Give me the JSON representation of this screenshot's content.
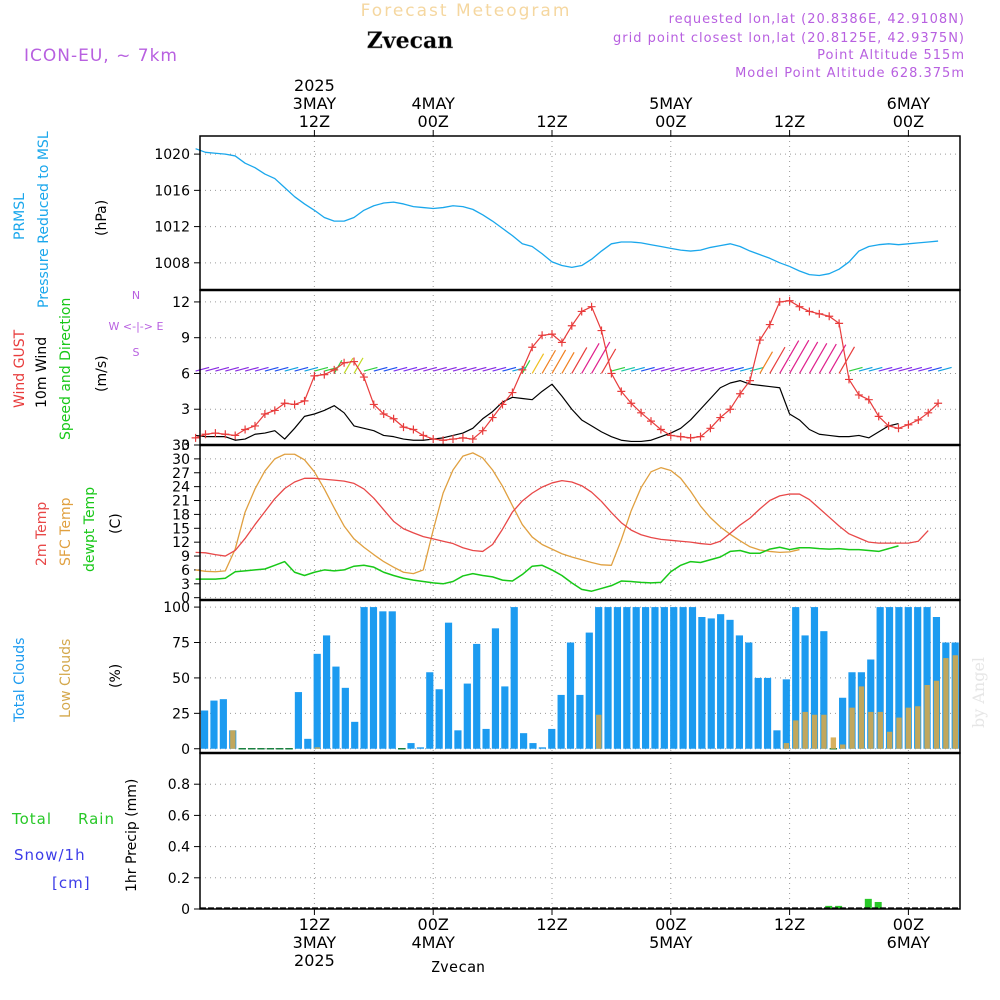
{
  "header": {
    "product": "Forecast Meteogram",
    "location": "Zvecan",
    "model": "ICON-EU, ~ 7km",
    "requested": "requested lon,lat (20.8386E, 42.9108N)",
    "grid": "grid point closest lon,lat (20.8125E, 42.9375N)",
    "point_alt": "Point Altitude 515m",
    "model_alt": "Model Point Altitude 628.375m",
    "footer_location": "Zvecan",
    "watermark": "by Angel"
  },
  "colors": {
    "pressure": "#1aa7ec",
    "gust": "#e83c3c",
    "wind": "#000000",
    "t2m": "#e84848",
    "sfc": "#e0a040",
    "dewpt": "#18c818",
    "total_clouds": "#1c9bf0",
    "low_clouds": "#d4a84c",
    "rain": "#28c828",
    "snow": "#3c3ce8",
    "purple": "#b860e0"
  },
  "time_axis": {
    "top": [
      {
        "h": 12,
        "lines": [
          "2025",
          "3MAY",
          "12Z"
        ]
      },
      {
        "h": 24,
        "lines": [
          "4MAY",
          "00Z"
        ]
      },
      {
        "h": 36,
        "lines": [
          "12Z"
        ]
      },
      {
        "h": 48,
        "lines": [
          "5MAY",
          "00Z"
        ]
      },
      {
        "h": 60,
        "lines": [
          "12Z"
        ]
      },
      {
        "h": 72,
        "lines": [
          "6MAY",
          "00Z"
        ]
      }
    ],
    "bottom": [
      {
        "h": 12,
        "lines": [
          "12Z",
          "3MAY",
          "2025"
        ]
      },
      {
        "h": 24,
        "lines": [
          "00Z",
          "4MAY"
        ]
      },
      {
        "h": 36,
        "lines": [
          "12Z"
        ]
      },
      {
        "h": 48,
        "lines": [
          "00Z",
          "5MAY"
        ]
      },
      {
        "h": 60,
        "lines": [
          "12Z"
        ]
      },
      {
        "h": 72,
        "lines": [
          "00Z",
          "6MAY"
        ]
      }
    ]
  },
  "panels": {
    "pressure": {
      "labels": [
        "PRMSL",
        "Pressure Reduced to MSL"
      ],
      "unit": "(hPa)"
    },
    "wind": {
      "labels": [
        "Wind GUST",
        "10m Wind",
        "Speed and Direction"
      ],
      "unit": "(m/s)",
      "compass": [
        "N",
        "W <-|-> E",
        "S"
      ]
    },
    "temp": {
      "labels": [
        "2m Temp",
        "SFC Temp",
        "dewpt Temp"
      ],
      "unit": "(C)"
    },
    "clouds": {
      "labels": [
        "Total Clouds",
        "Low Clouds"
      ],
      "unit": "(%)"
    },
    "precip": {
      "labels": [
        "Total",
        "Rain",
        "Snow/1h",
        "[cm]"
      ],
      "unit": "1hr Precip (mm)"
    }
  },
  "chart_data": [
    {
      "type": "line",
      "title": "PRMSL Pressure Reduced to MSL",
      "ylabel": "(hPa)",
      "x_hours": [
        0,
        1,
        2,
        3,
        4,
        5,
        6,
        7,
        8,
        9,
        10,
        11,
        12,
        13,
        14,
        15,
        16,
        17,
        18,
        19,
        20,
        21,
        22,
        23,
        24,
        25,
        26,
        27,
        28,
        29,
        30,
        31,
        32,
        33,
        34,
        35,
        36,
        37,
        38,
        39,
        40,
        41,
        42,
        43,
        44,
        45,
        46,
        47,
        48,
        49,
        50,
        51,
        52,
        53,
        54,
        55,
        56,
        57,
        58,
        59,
        60,
        61,
        62,
        63,
        64,
        65,
        66,
        67,
        68,
        69,
        70,
        71,
        72,
        73,
        74,
        75
      ],
      "series": [
        {
          "name": "PRMSL",
          "values": [
            1020.6,
            1020.2,
            1020.1,
            1020.0,
            1019.8,
            1019.0,
            1018.5,
            1017.8,
            1017.3,
            1016.3,
            1015.3,
            1014.5,
            1013.8,
            1013.0,
            1012.6,
            1012.6,
            1013.0,
            1013.8,
            1014.3,
            1014.6,
            1014.7,
            1014.5,
            1014.2,
            1014.1,
            1014.0,
            1014.1,
            1014.3,
            1014.2,
            1013.9,
            1013.3,
            1012.6,
            1011.8,
            1011.0,
            1010.1,
            1009.8,
            1009.0,
            1008.1,
            1007.7,
            1007.5,
            1007.7,
            1008.4,
            1009.3,
            1010.1,
            1010.3,
            1010.3,
            1010.2,
            1010.0,
            1009.8,
            1009.6,
            1009.4,
            1009.3,
            1009.4,
            1009.7,
            1009.9,
            1010.1,
            1009.8,
            1009.3,
            1008.9,
            1008.5,
            1008.0,
            1007.6,
            1007.1,
            1006.7,
            1006.6,
            1006.8,
            1007.3,
            1008.1,
            1009.3,
            1009.8,
            1010.0,
            1010.1,
            1010.0,
            1010.1,
            1010.2,
            1010.3,
            1010.4
          ]
        }
      ],
      "ylim": [
        1005,
        1022
      ],
      "yticks": [
        1008,
        1012,
        1016,
        1020
      ]
    },
    {
      "type": "line",
      "title": "Wind GUST / 10m Wind Speed and Direction",
      "ylabel": "(m/s)",
      "series": [
        {
          "name": "Wind GUST",
          "values": [
            0.6,
            0.9,
            1.0,
            0.9,
            0.8,
            1.3,
            1.6,
            2.6,
            2.9,
            3.5,
            3.4,
            3.7,
            5.8,
            5.9,
            6.3,
            6.9,
            7.0,
            5.7,
            3.4,
            2.6,
            2.2,
            1.5,
            1.3,
            0.8,
            0.5,
            0.4,
            0.5,
            0.6,
            0.5,
            1.2,
            2.3,
            3.4,
            4.4,
            6.3,
            8.2,
            9.2,
            9.3,
            8.6,
            10.0,
            11.2,
            11.6,
            9.6,
            6.0,
            4.5,
            3.5,
            2.7,
            2.0,
            1.3,
            0.8,
            0.7,
            0.6,
            0.7,
            1.4,
            2.3,
            3.0,
            4.3,
            5.4,
            8.8,
            10.1,
            12.0,
            12.1,
            11.6,
            11.2,
            11.0,
            10.8,
            10.2,
            5.5,
            4.2,
            3.8,
            2.4,
            1.6,
            1.4,
            1.7,
            2.1,
            2.7,
            3.5
          ]
        },
        {
          "name": "10m Wind",
          "values": [
            0.8,
            0.7,
            0.7,
            0.7,
            0.4,
            0.5,
            0.9,
            1.0,
            1.2,
            0.5,
            1.4,
            2.4,
            2.6,
            2.9,
            3.3,
            2.7,
            1.6,
            1.4,
            1.2,
            0.8,
            0.7,
            0.5,
            0.4,
            0.4,
            0.5,
            0.6,
            0.8,
            1.0,
            1.4,
            2.2,
            2.8,
            3.6,
            4.0,
            3.9,
            3.8,
            4.5,
            5.1,
            4.1,
            3.0,
            2.1,
            1.6,
            1.1,
            0.7,
            0.4,
            0.3,
            0.3,
            0.4,
            0.7,
            1.0,
            1.4,
            2.1,
            3.0,
            3.9,
            4.8,
            5.2,
            5.4,
            5.1,
            5.0,
            4.9,
            4.8,
            2.6,
            2.1,
            1.3,
            0.9,
            0.8,
            0.7,
            0.7,
            0.8,
            0.6,
            1.1,
            1.6,
            1.8
          ]
        }
      ],
      "ylim": [
        0,
        13
      ],
      "yticks": [
        0,
        3,
        6,
        9,
        12
      ]
    },
    {
      "type": "line",
      "title": "2m Temp / SFC Temp / dewpt Temp",
      "ylabel": "(C)",
      "series": [
        {
          "name": "2m Temp",
          "values": [
            9.8,
            9.7,
            9.3,
            9.0,
            10.2,
            12.8,
            15.8,
            18.6,
            21.4,
            23.6,
            25.0,
            25.8,
            25.8,
            25.6,
            25.4,
            25.2,
            24.7,
            23.5,
            21.5,
            19.0,
            16.5,
            14.9,
            14.0,
            13.2,
            12.7,
            12.2,
            11.7,
            10.8,
            10.2,
            10.0,
            11.5,
            14.8,
            18.5,
            20.9,
            22.6,
            23.9,
            24.8,
            25.3,
            25.0,
            24.2,
            22.8,
            20.8,
            18.4,
            16.2,
            14.6,
            13.6,
            13.0,
            12.6,
            12.4,
            12.2,
            12.0,
            11.7,
            11.5,
            12.2,
            13.9,
            15.7,
            17.2,
            19.2,
            21.0,
            22.0,
            22.4,
            22.4,
            21.2,
            19.3,
            17.4,
            15.5,
            13.8,
            12.9,
            12.0,
            11.8,
            11.8,
            11.8,
            11.8,
            12.2,
            14.5
          ]
        },
        {
          "name": "SFC Temp",
          "values": [
            6.0,
            5.7,
            5.6,
            5.8,
            10.5,
            18.5,
            23.5,
            27.4,
            30.0,
            31.0,
            31.0,
            29.8,
            27.2,
            23.5,
            19.4,
            15.5,
            12.7,
            10.9,
            9.3,
            7.8,
            6.6,
            5.5,
            5.2,
            6.0,
            14.6,
            22.6,
            27.6,
            30.6,
            31.3,
            30.2,
            27.6,
            24.1,
            19.9,
            15.8,
            13.1,
            11.5,
            10.5,
            9.5,
            8.8,
            8.2,
            7.6,
            7.1,
            7.0,
            12.5,
            18.8,
            23.8,
            27.2,
            28.1,
            27.5,
            25.8,
            23.0,
            19.8,
            17.3,
            15.3,
            13.7,
            12.3,
            11.0,
            10.3,
            10.0,
            9.8,
            9.9,
            10.4
          ]
        },
        {
          "name": "dewpt Temp",
          "values": [
            4.0,
            4.0,
            4.0,
            4.2,
            5.6,
            5.8,
            6.0,
            6.2,
            7.0,
            7.8,
            5.5,
            4.8,
            5.5,
            6.0,
            5.8,
            6.0,
            6.8,
            7.0,
            6.6,
            5.5,
            4.8,
            4.2,
            3.8,
            3.5,
            3.2,
            3.0,
            3.5,
            4.7,
            5.2,
            4.8,
            4.5,
            3.8,
            3.6,
            5.0,
            6.8,
            7.0,
            6.0,
            4.8,
            3.2,
            1.8,
            1.4,
            2.0,
            2.6,
            3.6,
            3.5,
            3.3,
            3.2,
            3.3,
            5.6,
            7.0,
            7.8,
            7.6,
            8.2,
            8.8,
            10.0,
            10.2,
            9.6,
            9.6,
            10.5,
            10.9,
            10.4,
            10.8,
            10.8,
            10.6,
            10.5,
            10.6,
            10.4,
            10.4,
            10.2,
            10.0,
            10.6,
            11.2
          ]
        }
      ],
      "ylim": [
        -0.5,
        33
      ],
      "yticks": [
        0,
        3,
        6,
        9,
        12,
        15,
        18,
        21,
        24,
        27,
        30,
        33
      ]
    },
    {
      "type": "bar",
      "title": "Total Clouds / Low Clouds",
      "ylabel": "(%)",
      "series": [
        {
          "name": "Total Clouds",
          "values": [
            27,
            34,
            35,
            13,
            0,
            0,
            0,
            0,
            0,
            0,
            40,
            7,
            67,
            80,
            58,
            43,
            19,
            100,
            100,
            97,
            97,
            0,
            4,
            1,
            54,
            42,
            89,
            13,
            46,
            74,
            14,
            85,
            44,
            100,
            11,
            4,
            1,
            14,
            38,
            75,
            38,
            82,
            100,
            100,
            100,
            100,
            100,
            100,
            100,
            100,
            100,
            100,
            100,
            93,
            92,
            95,
            91,
            80,
            75,
            50,
            50,
            13,
            49,
            100,
            80,
            100,
            83,
            0,
            36,
            54,
            54,
            63,
            100,
            100,
            100,
            100,
            100,
            100,
            93,
            75,
            75
          ]
        },
        {
          "name": "Low Clouds",
          "values": [
            0,
            0,
            0,
            13,
            0,
            0,
            0,
            0,
            0,
            0,
            0,
            0,
            1,
            0,
            0,
            0,
            0,
            0,
            0,
            0,
            0,
            0,
            0,
            0,
            0,
            0,
            0,
            0,
            0,
            0,
            0,
            0,
            0,
            0,
            0,
            0,
            0,
            0,
            0,
            0,
            0,
            0,
            24,
            0,
            0,
            0,
            0,
            0,
            0,
            0,
            0,
            0,
            0,
            0,
            0,
            0,
            0,
            0,
            0,
            0,
            0,
            0,
            4,
            20,
            26,
            24,
            24,
            8,
            3,
            29,
            44,
            26,
            26,
            12,
            22,
            29,
            30,
            45,
            48,
            64,
            66
          ]
        }
      ],
      "ylim": [
        -3,
        105
      ],
      "yticks": [
        0,
        25,
        50,
        75,
        100
      ]
    },
    {
      "type": "bar",
      "title": "1hr Precip (mm)",
      "ylabel": "1hr Precip (mm)",
      "series": [
        {
          "name": "Total Rain",
          "values": [
            {
              "h": 64,
              "v": 0.02
            },
            {
              "h": 65,
              "v": 0.02
            },
            {
              "h": 68,
              "v": 0.065
            },
            {
              "h": 69,
              "v": 0.045
            }
          ]
        }
      ],
      "ylim": [
        0,
        1.0
      ],
      "yticks": [
        0,
        0.2,
        0.4,
        0.6,
        0.8
      ]
    }
  ]
}
